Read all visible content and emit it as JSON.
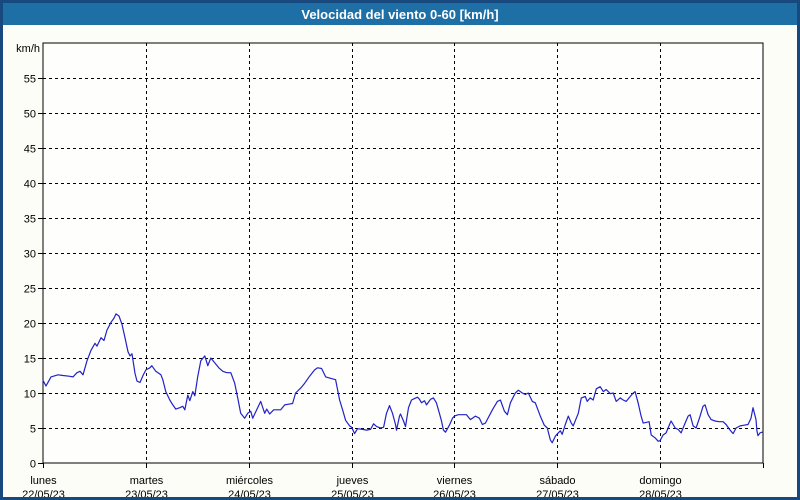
{
  "window": {
    "title": "Velocidad del viento 0-60 [km/h]"
  },
  "colors": {
    "titlebar_bg": "#1d6fa5",
    "title_text": "#ffffff",
    "frame_border": "#17497e",
    "page_bg": "#fbfdf6",
    "plot_bg": "#fefefc",
    "grid": "#000000",
    "axis": "#000000",
    "line": "#2222c8",
    "label_text": "#000000"
  },
  "chart_data": {
    "type": "line",
    "title": "Velocidad del viento 0-60 [km/h]",
    "y_unit_label": "km/h",
    "ylim": [
      0,
      60
    ],
    "y_tick_step": 5,
    "y_ticks": [
      0,
      5,
      10,
      15,
      20,
      25,
      30,
      35,
      40,
      45,
      50,
      55
    ],
    "xlim_days": [
      0,
      7
    ],
    "grid": "dashed",
    "legend": "none",
    "x_days": [
      {
        "name": "lunes",
        "date": "22/05/23"
      },
      {
        "name": "martes",
        "date": "23/05/23"
      },
      {
        "name": "miércoles",
        "date": "24/05/23"
      },
      {
        "name": "jueves",
        "date": "25/05/23"
      },
      {
        "name": "viernes",
        "date": "26/05/23"
      },
      {
        "name": "sábado",
        "date": "27/05/23"
      },
      {
        "name": "domingo",
        "date": "28/05/23"
      }
    ],
    "series": [
      {
        "name": "Velocidad del viento",
        "unit": "km/h",
        "points": [
          [
            0.0,
            11.8
          ],
          [
            0.029,
            11.0
          ],
          [
            0.078,
            12.3
          ],
          [
            0.146,
            12.6
          ],
          [
            0.194,
            12.5
          ],
          [
            0.253,
            12.4
          ],
          [
            0.292,
            12.3
          ],
          [
            0.331,
            12.9
          ],
          [
            0.36,
            13.1
          ],
          [
            0.389,
            12.6
          ],
          [
            0.428,
            14.6
          ],
          [
            0.467,
            16.1
          ],
          [
            0.506,
            17.1
          ],
          [
            0.525,
            16.7
          ],
          [
            0.564,
            17.9
          ],
          [
            0.593,
            17.5
          ],
          [
            0.622,
            19.0
          ],
          [
            0.661,
            20.1
          ],
          [
            0.69,
            20.7
          ],
          [
            0.71,
            21.3
          ],
          [
            0.739,
            21.0
          ],
          [
            0.768,
            19.8
          ],
          [
            0.797,
            17.9
          ],
          [
            0.826,
            15.9
          ],
          [
            0.846,
            15.3
          ],
          [
            0.865,
            15.6
          ],
          [
            0.894,
            12.8
          ],
          [
            0.914,
            11.7
          ],
          [
            0.943,
            11.5
          ],
          [
            0.972,
            12.5
          ],
          [
            1.0,
            13.3
          ],
          [
            1.039,
            13.6
          ],
          [
            1.058,
            13.9
          ],
          [
            1.097,
            13.1
          ],
          [
            1.146,
            12.6
          ],
          [
            1.165,
            11.9
          ],
          [
            1.194,
            10.2
          ],
          [
            1.233,
            9.0
          ],
          [
            1.262,
            8.3
          ],
          [
            1.291,
            7.7
          ],
          [
            1.33,
            7.9
          ],
          [
            1.359,
            8.1
          ],
          [
            1.379,
            7.6
          ],
          [
            1.408,
            9.7
          ],
          [
            1.427,
            8.9
          ],
          [
            1.456,
            10.2
          ],
          [
            1.476,
            9.6
          ],
          [
            1.505,
            12.4
          ],
          [
            1.534,
            14.6
          ],
          [
            1.573,
            15.3
          ],
          [
            1.602,
            13.9
          ],
          [
            1.631,
            15.0
          ],
          [
            1.67,
            14.3
          ],
          [
            1.709,
            13.6
          ],
          [
            1.748,
            13.1
          ],
          [
            1.787,
            12.9
          ],
          [
            1.826,
            12.9
          ],
          [
            1.864,
            11.4
          ],
          [
            1.893,
            9.3
          ],
          [
            1.922,
            7.1
          ],
          [
            1.961,
            6.4
          ],
          [
            1.99,
            7.1
          ],
          [
            2.019,
            7.4
          ],
          [
            2.039,
            6.4
          ],
          [
            2.078,
            7.6
          ],
          [
            2.117,
            8.8
          ],
          [
            2.155,
            7.1
          ],
          [
            2.175,
            7.7
          ],
          [
            2.204,
            7.0
          ],
          [
            2.243,
            7.6
          ],
          [
            2.282,
            7.6
          ],
          [
            2.311,
            7.6
          ],
          [
            2.35,
            8.3
          ],
          [
            2.388,
            8.4
          ],
          [
            2.427,
            8.5
          ],
          [
            2.456,
            10.0
          ],
          [
            2.505,
            10.7
          ],
          [
            2.544,
            11.4
          ],
          [
            2.592,
            12.4
          ],
          [
            2.641,
            13.3
          ],
          [
            2.67,
            13.6
          ],
          [
            2.709,
            13.5
          ],
          [
            2.748,
            12.3
          ],
          [
            2.796,
            12.1
          ],
          [
            2.845,
            11.9
          ],
          [
            2.884,
            9.0
          ],
          [
            2.913,
            7.6
          ],
          [
            2.942,
            6.1
          ],
          [
            2.981,
            5.3
          ],
          [
            3.0,
            5.1
          ],
          [
            3.029,
            4.2
          ],
          [
            3.058,
            4.9
          ],
          [
            3.107,
            4.8
          ],
          [
            3.146,
            4.7
          ],
          [
            3.184,
            4.8
          ],
          [
            3.214,
            5.6
          ],
          [
            3.243,
            5.2
          ],
          [
            3.282,
            5.0
          ],
          [
            3.311,
            5.1
          ],
          [
            3.34,
            7.1
          ],
          [
            3.369,
            8.2
          ],
          [
            3.398,
            7.1
          ],
          [
            3.427,
            5.5
          ],
          [
            3.437,
            4.7
          ],
          [
            3.466,
            6.7
          ],
          [
            3.476,
            7.0
          ],
          [
            3.505,
            6.0
          ],
          [
            3.524,
            5.2
          ],
          [
            3.553,
            7.9
          ],
          [
            3.583,
            9.0
          ],
          [
            3.612,
            9.2
          ],
          [
            3.641,
            9.4
          ],
          [
            3.66,
            9.1
          ],
          [
            3.68,
            8.6
          ],
          [
            3.709,
            8.9
          ],
          [
            3.728,
            8.3
          ],
          [
            3.767,
            9.1
          ],
          [
            3.796,
            9.3
          ],
          [
            3.825,
            8.6
          ],
          [
            3.854,
            7.1
          ],
          [
            3.874,
            6.0
          ],
          [
            3.893,
            4.7
          ],
          [
            3.913,
            4.4
          ],
          [
            3.951,
            5.4
          ],
          [
            3.981,
            6.4
          ],
          [
            4.0,
            6.7
          ],
          [
            4.039,
            6.9
          ],
          [
            4.078,
            6.9
          ],
          [
            4.117,
            6.9
          ],
          [
            4.155,
            6.2
          ],
          [
            4.204,
            6.7
          ],
          [
            4.243,
            6.4
          ],
          [
            4.272,
            5.5
          ],
          [
            4.301,
            5.7
          ],
          [
            4.369,
            7.6
          ],
          [
            4.418,
            8.8
          ],
          [
            4.447,
            9.0
          ],
          [
            4.486,
            7.4
          ],
          [
            4.515,
            6.9
          ],
          [
            4.544,
            8.6
          ],
          [
            4.592,
            10.0
          ],
          [
            4.622,
            10.4
          ],
          [
            4.66,
            10.0
          ],
          [
            4.689,
            9.8
          ],
          [
            4.718,
            10.0
          ],
          [
            4.757,
            8.8
          ],
          [
            4.786,
            8.6
          ],
          [
            4.835,
            6.7
          ],
          [
            4.874,
            5.4
          ],
          [
            4.903,
            5.0
          ],
          [
            4.932,
            3.3
          ],
          [
            4.951,
            2.9
          ],
          [
            4.981,
            3.8
          ],
          [
            4.99,
            4.0
          ],
          [
            5.029,
            4.6
          ],
          [
            5.048,
            4.1
          ],
          [
            5.078,
            5.5
          ],
          [
            5.107,
            6.7
          ],
          [
            5.136,
            5.7
          ],
          [
            5.155,
            5.3
          ],
          [
            5.204,
            7.1
          ],
          [
            5.233,
            9.3
          ],
          [
            5.272,
            9.5
          ],
          [
            5.291,
            8.8
          ],
          [
            5.32,
            9.3
          ],
          [
            5.349,
            9.0
          ],
          [
            5.379,
            10.6
          ],
          [
            5.417,
            10.9
          ],
          [
            5.447,
            10.2
          ],
          [
            5.476,
            10.5
          ],
          [
            5.515,
            9.9
          ],
          [
            5.544,
            10.0
          ],
          [
            5.573,
            8.8
          ],
          [
            5.612,
            9.3
          ],
          [
            5.641,
            9.0
          ],
          [
            5.67,
            8.8
          ],
          [
            5.709,
            9.5
          ],
          [
            5.738,
            10.0
          ],
          [
            5.757,
            10.2
          ],
          [
            5.786,
            8.6
          ],
          [
            5.815,
            6.7
          ],
          [
            5.835,
            5.7
          ],
          [
            5.864,
            5.8
          ],
          [
            5.893,
            5.9
          ],
          [
            5.913,
            4.0
          ],
          [
            5.951,
            3.6
          ],
          [
            5.981,
            3.1
          ],
          [
            6.0,
            3.2
          ],
          [
            6.029,
            4.0
          ],
          [
            6.058,
            4.3
          ],
          [
            6.097,
            5.7
          ],
          [
            6.107,
            6.0
          ],
          [
            6.146,
            5.0
          ],
          [
            6.175,
            4.8
          ],
          [
            6.204,
            4.3
          ],
          [
            6.243,
            5.7
          ],
          [
            6.272,
            6.7
          ],
          [
            6.291,
            6.9
          ],
          [
            6.32,
            5.3
          ],
          [
            6.35,
            5.0
          ],
          [
            6.388,
            6.7
          ],
          [
            6.417,
            8.1
          ],
          [
            6.437,
            8.3
          ],
          [
            6.466,
            6.9
          ],
          [
            6.495,
            6.2
          ],
          [
            6.534,
            6.0
          ],
          [
            6.573,
            5.9
          ],
          [
            6.612,
            5.9
          ],
          [
            6.641,
            5.5
          ],
          [
            6.68,
            4.7
          ],
          [
            6.709,
            4.2
          ],
          [
            6.738,
            5.0
          ],
          [
            6.777,
            5.3
          ],
          [
            6.816,
            5.4
          ],
          [
            6.854,
            5.5
          ],
          [
            6.883,
            6.4
          ],
          [
            6.903,
            7.9
          ],
          [
            6.932,
            6.2
          ],
          [
            6.941,
            4.6
          ],
          [
            6.951,
            3.9
          ],
          [
            6.971,
            4.3
          ],
          [
            6.99,
            4.4
          ]
        ]
      }
    ]
  }
}
